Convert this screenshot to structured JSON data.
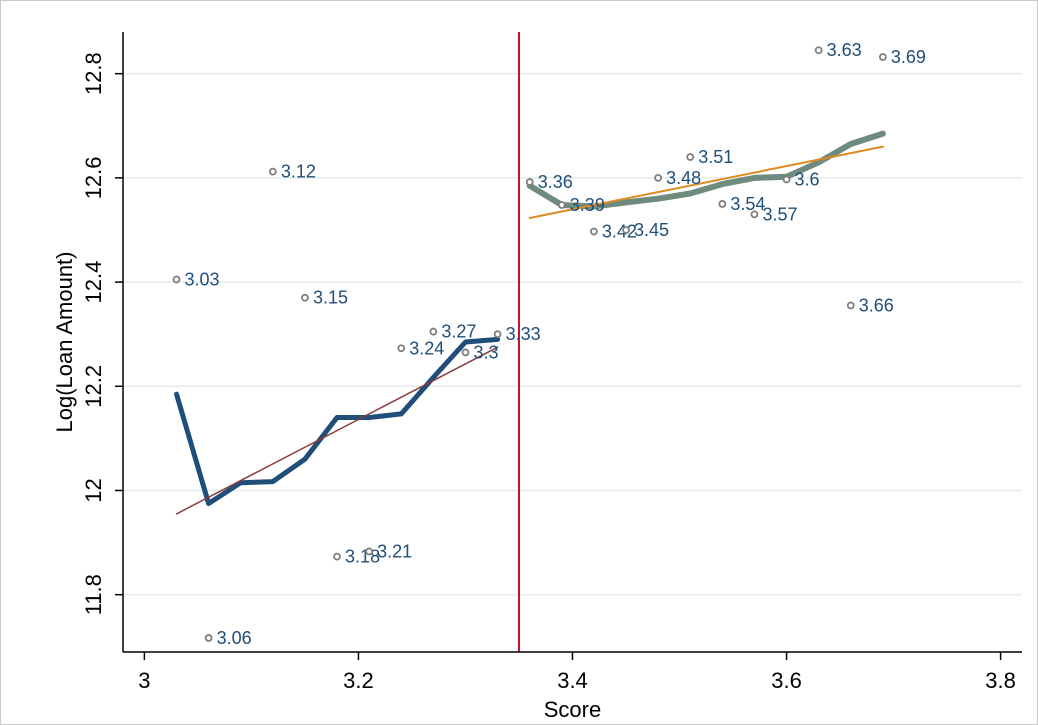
{
  "chart_data": {
    "type": "scatter",
    "xlabel": "Score",
    "ylabel": "Log(Loan Amount)",
    "xlim": [
      2.98,
      3.82
    ],
    "ylim": [
      11.69,
      12.88
    ],
    "x_ticks": [
      3,
      3.2,
      3.4,
      3.6,
      3.8
    ],
    "x_tick_labels": [
      "3",
      "3.2",
      "3.4",
      "3.6",
      "3.8"
    ],
    "y_ticks": [
      11.8,
      12,
      12.2,
      12.4,
      12.6,
      12.8
    ],
    "y_tick_labels": [
      "11.8",
      "12",
      "12.2",
      "12.4",
      "12.6",
      "12.8"
    ],
    "grid": "horizontal",
    "cutoff": 3.35,
    "points": [
      {
        "x": 3.03,
        "y": 12.405,
        "label": "3.03"
      },
      {
        "x": 3.06,
        "y": 11.717,
        "label": "3.06"
      },
      {
        "x": 3.12,
        "y": 12.612,
        "label": "3.12"
      },
      {
        "x": 3.15,
        "y": 12.37,
        "label": "3.15"
      },
      {
        "x": 3.18,
        "y": 11.873,
        "label": "3.18"
      },
      {
        "x": 3.21,
        "y": 11.883,
        "label": "3.21"
      },
      {
        "x": 3.24,
        "y": 12.273,
        "label": "3.24"
      },
      {
        "x": 3.27,
        "y": 12.305,
        "label": "3.27"
      },
      {
        "x": 3.3,
        "y": 12.265,
        "label": "3.3"
      },
      {
        "x": 3.33,
        "y": 12.3,
        "label": "3.33"
      },
      {
        "x": 3.36,
        "y": 12.592,
        "label": "3.36"
      },
      {
        "x": 3.39,
        "y": 12.548,
        "label": "3.39"
      },
      {
        "x": 3.42,
        "y": 12.497,
        "label": "3.42"
      },
      {
        "x": 3.45,
        "y": 12.5,
        "label": "3.45"
      },
      {
        "x": 3.48,
        "y": 12.6,
        "label": "3.48"
      },
      {
        "x": 3.51,
        "y": 12.64,
        "label": "3.51"
      },
      {
        "x": 3.54,
        "y": 12.55,
        "label": "3.54"
      },
      {
        "x": 3.57,
        "y": 12.53,
        "label": "3.57"
      },
      {
        "x": 3.6,
        "y": 12.597,
        "label": "3.6"
      },
      {
        "x": 3.63,
        "y": 12.845,
        "label": "3.63"
      },
      {
        "x": 3.66,
        "y": 12.355,
        "label": "3.66"
      },
      {
        "x": 3.69,
        "y": 12.832,
        "label": "3.69"
      }
    ],
    "series": [
      {
        "color": "#1f4e79",
        "kind": "local-mean-left",
        "x": [
          3.03,
          3.06,
          3.09,
          3.12,
          3.15,
          3.18,
          3.21,
          3.24,
          3.27,
          3.3,
          3.33
        ],
        "y": [
          12.185,
          11.975,
          12.015,
          12.017,
          12.06,
          12.14,
          12.14,
          12.147,
          12.217,
          12.285,
          12.29
        ]
      },
      {
        "color": "#8c3a3a",
        "kind": "linear-fit-left",
        "x": [
          3.03,
          3.33
        ],
        "y": [
          11.955,
          12.275
        ]
      },
      {
        "color": "#6e8b7d",
        "kind": "local-mean-right",
        "x": [
          3.36,
          3.39,
          3.42,
          3.45,
          3.48,
          3.51,
          3.54,
          3.57,
          3.6,
          3.63,
          3.66,
          3.69
        ],
        "y": [
          12.585,
          12.548,
          12.545,
          12.553,
          12.56,
          12.57,
          12.588,
          12.6,
          12.602,
          12.63,
          12.665,
          12.685
        ]
      },
      {
        "color": "#e08a1e",
        "kind": "linear-fit-right",
        "x": [
          3.36,
          3.69
        ],
        "y": [
          12.523,
          12.66
        ]
      }
    ],
    "colors": {
      "axis": "#000000",
      "grid": "#e3ecec",
      "cutoff_line": "#c8102e",
      "marker": "#7f7f7f",
      "label": "#1f4e79"
    }
  }
}
